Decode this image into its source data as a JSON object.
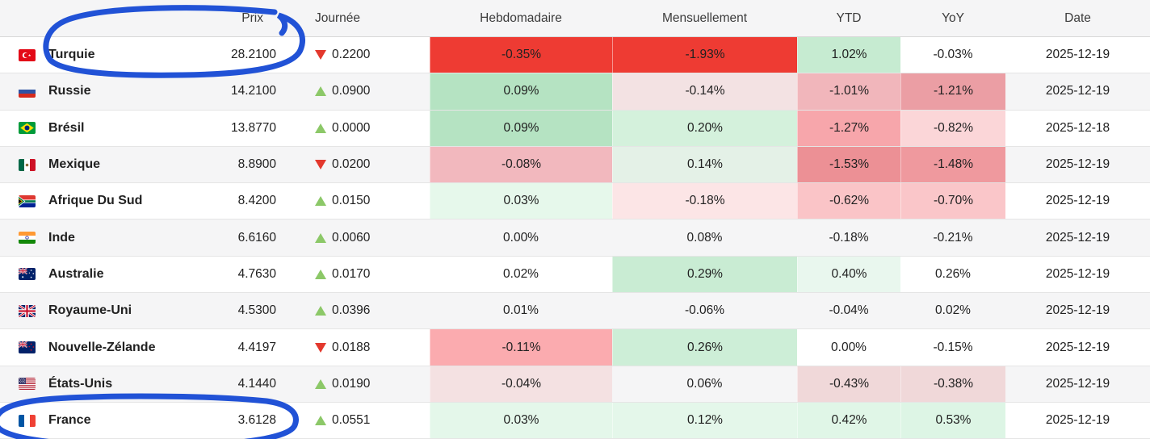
{
  "table": {
    "header": {
      "prix": "Prix",
      "journee": "Journée",
      "weekly": "Hebdomadaire",
      "monthly": "Mensuellement",
      "ytd": "YTD",
      "yoy": "YoY",
      "date": "Date"
    },
    "rows": [
      {
        "flag": "turkey-flag",
        "country": "Turquie",
        "prix": "28.2100",
        "direction": "down",
        "change": "0.2200",
        "weekly": {
          "text": "-0.35%",
          "bg": "#ee3b33"
        },
        "monthly": {
          "text": "-1.93%",
          "bg": "#ee3b33"
        },
        "ytd": {
          "text": "1.02%",
          "bg": "#c6ebd1"
        },
        "yoy": {
          "text": "-0.03%",
          "bg": ""
        },
        "date": "2025-12-19"
      },
      {
        "flag": "russia-flag",
        "country": "Russie",
        "prix": "14.2100",
        "direction": "up",
        "change": "0.0900",
        "weekly": {
          "text": "0.09%",
          "bg": "#b5e3c2"
        },
        "monthly": {
          "text": "-0.14%",
          "bg": "#f3e2e3"
        },
        "ytd": {
          "text": "-1.01%",
          "bg": "#f1b6bb"
        },
        "yoy": {
          "text": "-1.21%",
          "bg": "#eb9ea4"
        },
        "date": "2025-12-19"
      },
      {
        "flag": "brazil-flag",
        "country": "Brésil",
        "prix": "13.8770",
        "direction": "up",
        "change": "0.0000",
        "weekly": {
          "text": "0.09%",
          "bg": "#b5e3c2"
        },
        "monthly": {
          "text": "0.20%",
          "bg": "#d4f1dc"
        },
        "ytd": {
          "text": "-1.27%",
          "bg": "#f7a6ab"
        },
        "yoy": {
          "text": "-0.82%",
          "bg": "#fbd6d8"
        },
        "date": "2025-12-18"
      },
      {
        "flag": "mexico-flag",
        "country": "Mexique",
        "prix": "8.8900",
        "direction": "down",
        "change": "0.0200",
        "weekly": {
          "text": "-0.08%",
          "bg": "#f2b8be"
        },
        "monthly": {
          "text": "0.14%",
          "bg": "#e4f1e7"
        },
        "ytd": {
          "text": "-1.53%",
          "bg": "#ec9095"
        },
        "yoy": {
          "text": "-1.48%",
          "bg": "#ef999e"
        },
        "date": "2025-12-19"
      },
      {
        "flag": "south-africa-flag",
        "country": "Afrique Du Sud",
        "prix": "8.4200",
        "direction": "up",
        "change": "0.0150",
        "weekly": {
          "text": "0.03%",
          "bg": "#e6f8eb"
        },
        "monthly": {
          "text": "-0.18%",
          "bg": "#fce5e6"
        },
        "ytd": {
          "text": "-0.62%",
          "bg": "#fac4c7"
        },
        "yoy": {
          "text": "-0.70%",
          "bg": "#fac6c9"
        },
        "date": "2025-12-19"
      },
      {
        "flag": "india-flag",
        "country": "Inde",
        "prix": "6.6160",
        "direction": "up",
        "change": "0.0060",
        "weekly": {
          "text": "0.00%",
          "bg": ""
        },
        "monthly": {
          "text": "0.08%",
          "bg": ""
        },
        "ytd": {
          "text": "-0.18%",
          "bg": ""
        },
        "yoy": {
          "text": "-0.21%",
          "bg": ""
        },
        "date": "2025-12-19"
      },
      {
        "flag": "australia-flag",
        "country": "Australie",
        "prix": "4.7630",
        "direction": "up",
        "change": "0.0170",
        "weekly": {
          "text": "0.02%",
          "bg": ""
        },
        "monthly": {
          "text": "0.29%",
          "bg": "#c9ecd3"
        },
        "ytd": {
          "text": "0.40%",
          "bg": "#e9f7ee"
        },
        "yoy": {
          "text": "0.26%",
          "bg": ""
        },
        "date": "2025-12-19"
      },
      {
        "flag": "united-kingdom-flag",
        "country": "Royaume-Uni",
        "prix": "4.5300",
        "direction": "up",
        "change": "0.0396",
        "weekly": {
          "text": "0.01%",
          "bg": ""
        },
        "monthly": {
          "text": "-0.06%",
          "bg": ""
        },
        "ytd": {
          "text": "-0.04%",
          "bg": ""
        },
        "yoy": {
          "text": "0.02%",
          "bg": ""
        },
        "date": "2025-12-19"
      },
      {
        "flag": "new-zealand-flag",
        "country": "Nouvelle-Zélande",
        "prix": "4.4197",
        "direction": "down",
        "change": "0.0188",
        "weekly": {
          "text": "-0.11%",
          "bg": "#fbabaf"
        },
        "monthly": {
          "text": "0.26%",
          "bg": "#cdeed7"
        },
        "ytd": {
          "text": "0.00%",
          "bg": ""
        },
        "yoy": {
          "text": "-0.15%",
          "bg": ""
        },
        "date": "2025-12-19"
      },
      {
        "flag": "united-states-flag",
        "country": "États-Unis",
        "prix": "4.1440",
        "direction": "up",
        "change": "0.0190",
        "weekly": {
          "text": "-0.04%",
          "bg": "#f4e1e2"
        },
        "monthly": {
          "text": "0.06%",
          "bg": ""
        },
        "ytd": {
          "text": "-0.43%",
          "bg": "#f0d8d9"
        },
        "yoy": {
          "text": "-0.38%",
          "bg": "#f0d8d9"
        },
        "date": "2025-12-19"
      },
      {
        "flag": "france-flag",
        "country": "France",
        "prix": "3.6128",
        "direction": "up",
        "change": "0.0551",
        "weekly": {
          "text": "0.03%",
          "bg": "#e4f7ea"
        },
        "monthly": {
          "text": "0.12%",
          "bg": "#e4f7ea"
        },
        "ytd": {
          "text": "0.42%",
          "bg": "#e0f6e7"
        },
        "yoy": {
          "text": "0.53%",
          "bg": "#ddf5e5"
        },
        "date": "2025-12-19"
      }
    ]
  },
  "colors": {
    "annotation_blue": "#2152d6",
    "up_green": "#8cc868",
    "down_red": "#e3382d"
  },
  "annotations": [
    {
      "name": "hand-drawn-circle-prix-turquie"
    },
    {
      "name": "hand-drawn-circle-france-price"
    }
  ]
}
